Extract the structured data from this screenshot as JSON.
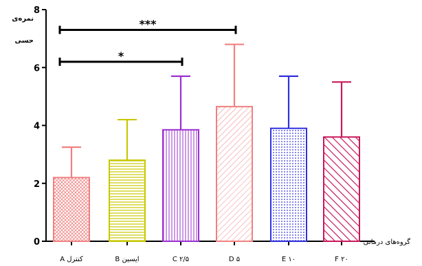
{
  "chart_data": {
    "type": "bar",
    "ylabel_lines": [
      "نمره‌ی",
      "حسی"
    ],
    "xlabel": "گروه‌های درمانی",
    "ylim": [
      0,
      8
    ],
    "yticks": [
      0,
      2,
      4,
      6,
      8
    ],
    "grid": false,
    "categories": [
      "A کنترل",
      "B ایسین",
      "C ۲/۵",
      "D ۵",
      "E ۱۰",
      "F ۲۰"
    ],
    "values": [
      2.2,
      2.8,
      3.85,
      4.65,
      3.9,
      3.6
    ],
    "errors": [
      1.05,
      1.4,
      1.85,
      2.15,
      1.8,
      1.9
    ],
    "colors": [
      "#f08080",
      "#c8c800",
      "#9b30d0",
      "#f08080",
      "#3030e0",
      "#c8185a"
    ],
    "patterns": [
      "crosshatch",
      "horizontal",
      "vertical",
      "diagonal-fine",
      "dots",
      "diagonal-bold"
    ],
    "significance": [
      {
        "from": 0,
        "to": 2,
        "y": 6.2,
        "label": "*"
      },
      {
        "from": 0,
        "to": 3,
        "y": 7.3,
        "label": "***"
      }
    ]
  }
}
